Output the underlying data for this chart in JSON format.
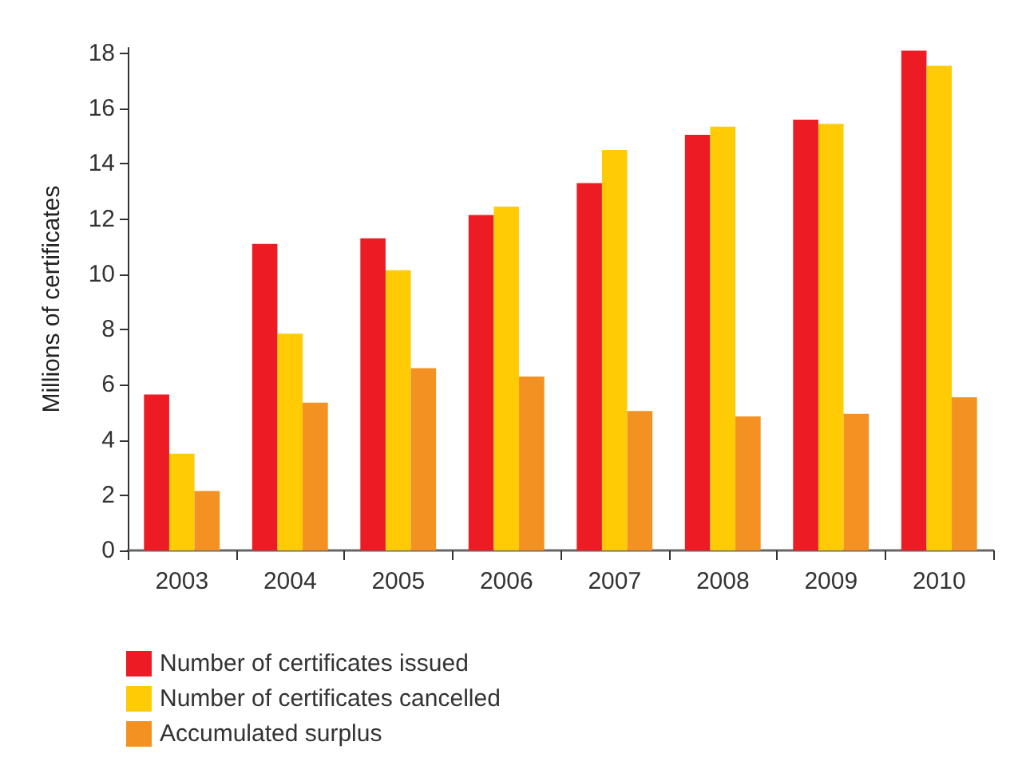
{
  "chart_data": {
    "type": "bar",
    "ylabel": "Millions of certificates",
    "categories": [
      "2003",
      "2004",
      "2005",
      "2006",
      "2007",
      "2008",
      "2009",
      "2010"
    ],
    "series": [
      {
        "name": "Number of certificates issued",
        "color": "#ed1c24",
        "values": [
          5.65,
          11.1,
          11.3,
          12.15,
          13.3,
          15.05,
          15.6,
          18.1
        ]
      },
      {
        "name": "Number of certificates cancelled",
        "color": "#ffcb05",
        "values": [
          3.5,
          7.85,
          10.15,
          12.45,
          14.5,
          15.35,
          15.45,
          17.55
        ]
      },
      {
        "name": "Accumulated surplus",
        "color": "#f39122",
        "values": [
          2.15,
          5.35,
          6.6,
          6.3,
          5.05,
          4.85,
          4.95,
          5.55
        ]
      }
    ],
    "ylim": [
      0,
      18.2
    ],
    "yticks": [
      0,
      2,
      4,
      6,
      8,
      10,
      12,
      14,
      16,
      18
    ],
    "grid": false,
    "legend": "bottom left"
  }
}
